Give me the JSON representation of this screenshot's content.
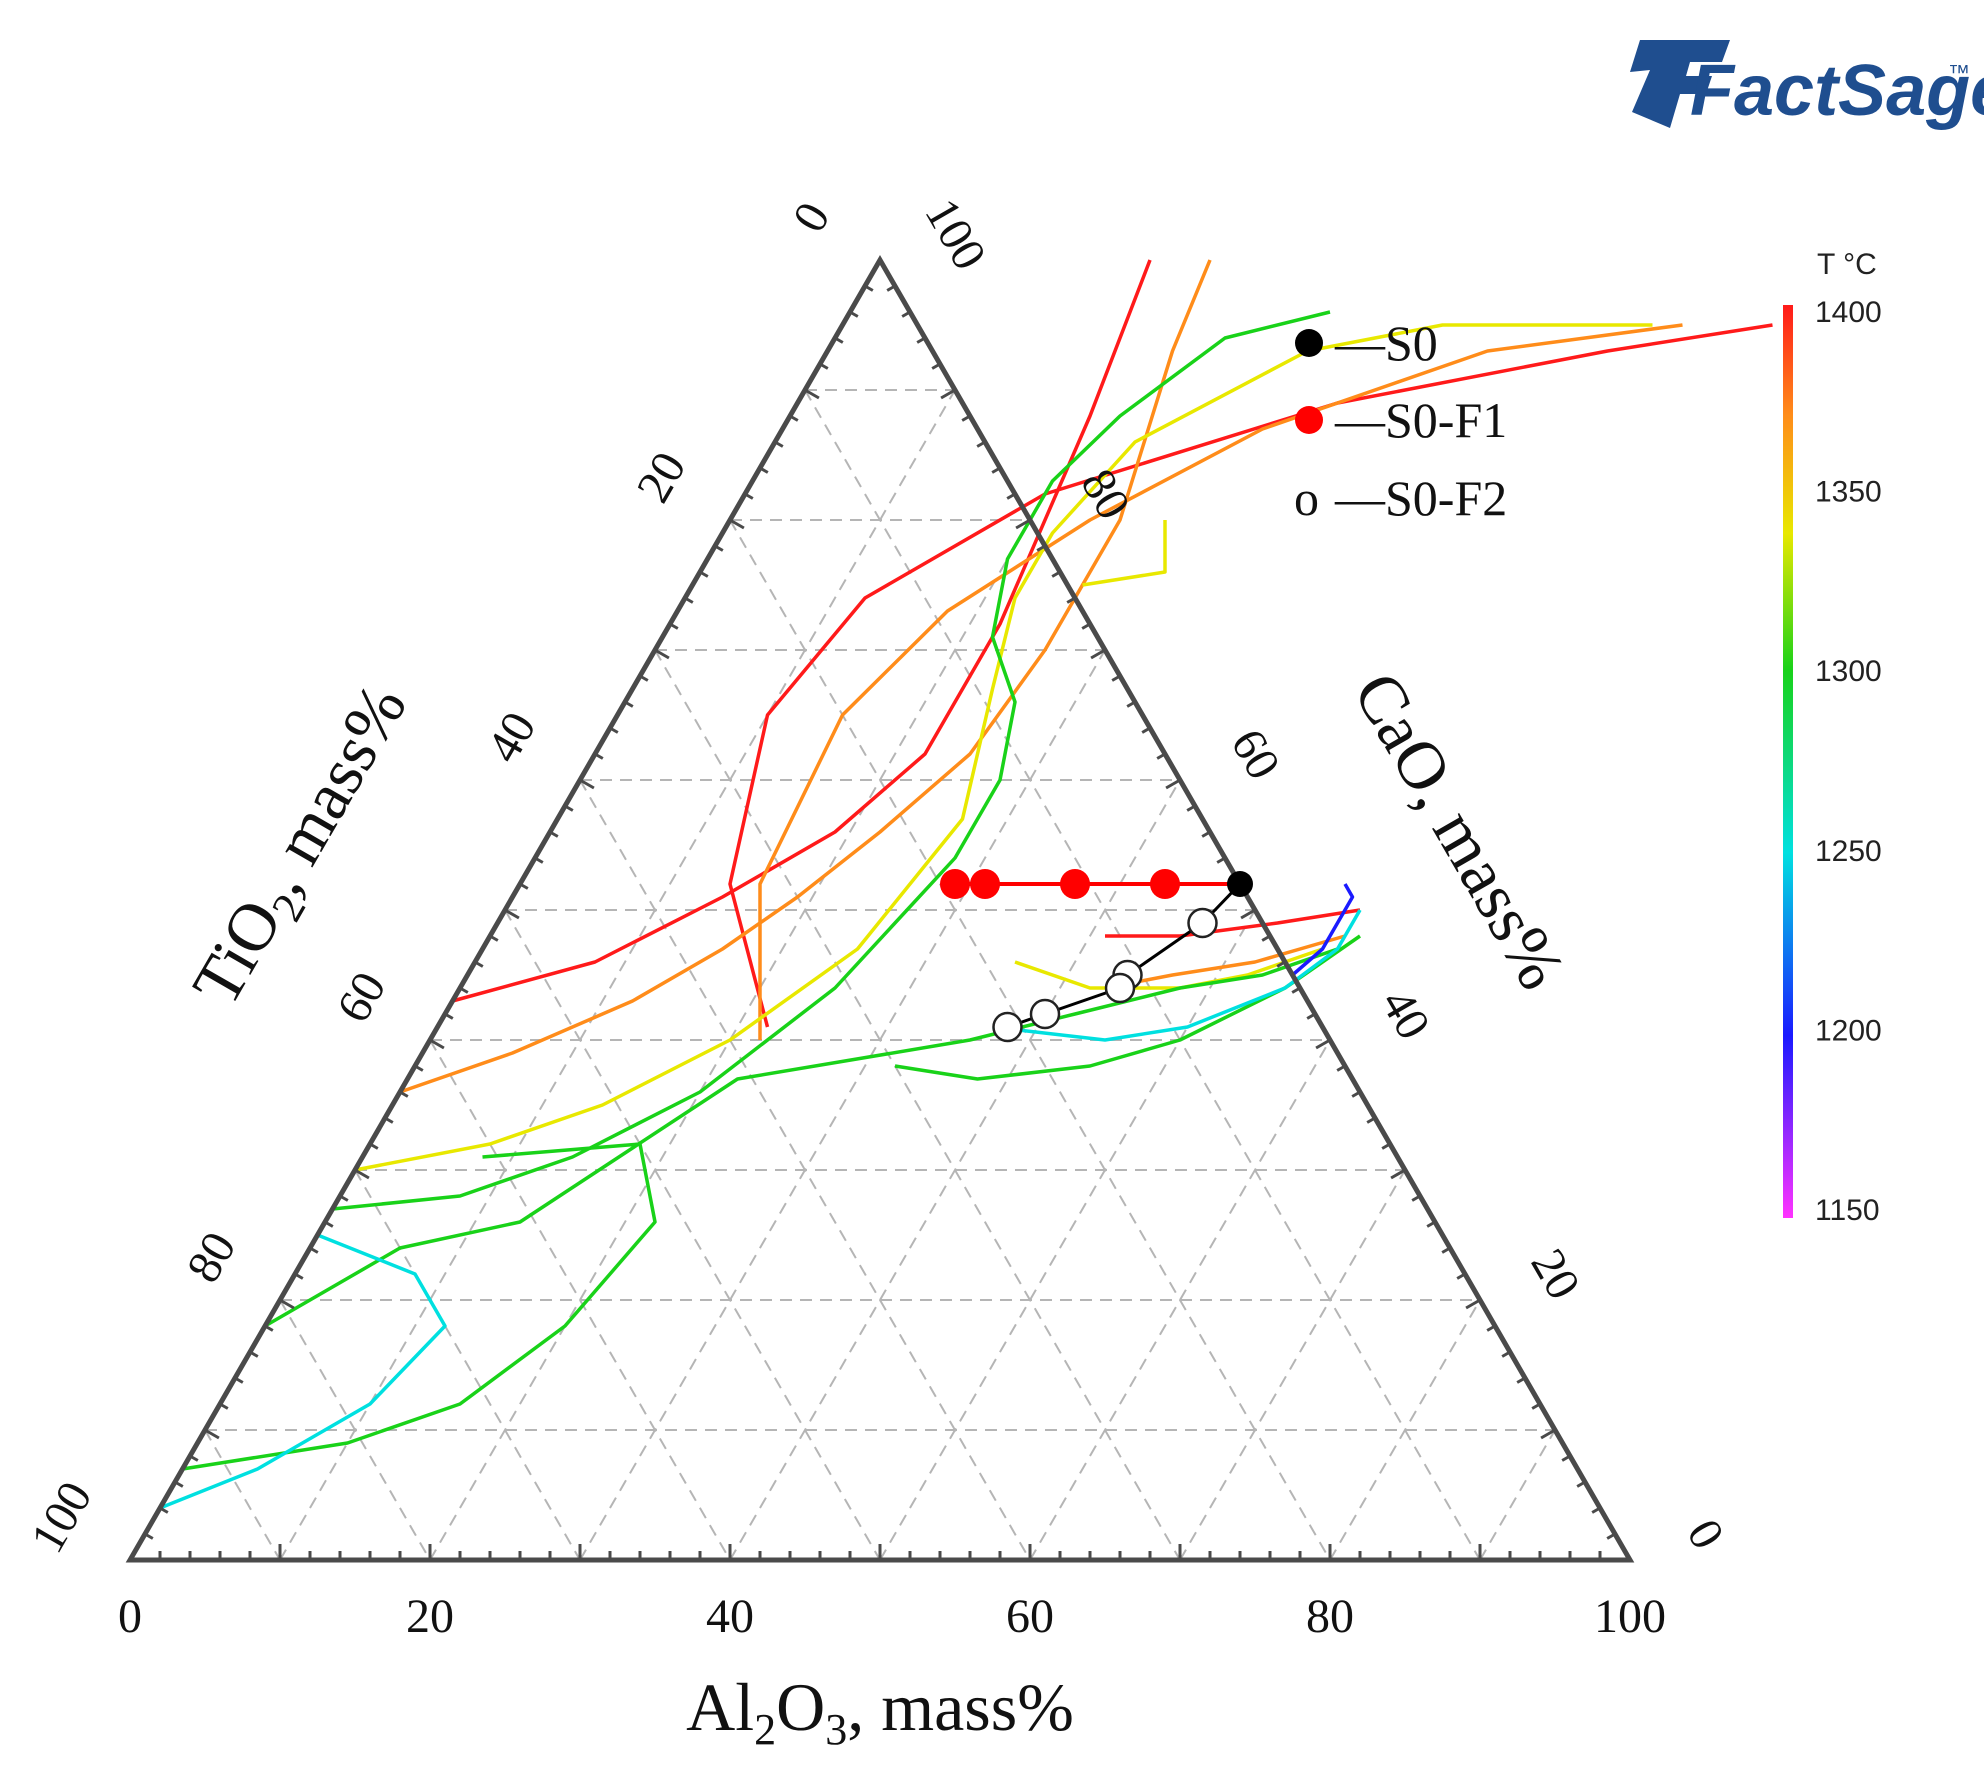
{
  "logo": {
    "text": "FactSage",
    "mark": "™",
    "color": "#1f4e8f"
  },
  "chart_data": {
    "type": "ternary-contour",
    "axes": {
      "al2o3": {
        "label_main": "Al",
        "sub1": "2",
        "mid": "O",
        "sub2": "3",
        "suffix": ", mass%",
        "ticks": [
          "0",
          "20",
          "40",
          "60",
          "80",
          "100"
        ]
      },
      "tio2": {
        "label_main": "TiO",
        "sub1": "2",
        "suffix": ", mass%",
        "ticks": [
          "0",
          "20",
          "40",
          "60",
          "80",
          "100"
        ]
      },
      "cao": {
        "label": "CaO, mass%",
        "ticks": [
          "0",
          "20",
          "40",
          "60",
          "80",
          "100"
        ]
      },
      "range": [
        0,
        100
      ],
      "grid_step": 10,
      "grid": "dashed"
    },
    "colorbar": {
      "title": "T °C",
      "min": 1150,
      "max": 1400,
      "ticks": [
        "1400",
        "1350",
        "1300",
        "1250",
        "1200",
        "1150"
      ],
      "colors": [
        "#ff1a1a",
        "#ff8c1a",
        "#e8e800",
        "#19d219",
        "#00e0e0",
        "#1a1aff",
        "#ff33ff"
      ]
    },
    "legend": [
      {
        "marker": "●",
        "label": "—S0",
        "color": "#000000"
      },
      {
        "marker": "●",
        "label": "—S0-F1",
        "color": "#ff0000"
      },
      {
        "marker": "o",
        "label": "—S0-F2",
        "color": "#000000"
      }
    ],
    "series": [
      {
        "name": "S0",
        "color": "#000000",
        "points": [
          {
            "cao": 52,
            "al2o3": 48
          }
        ]
      },
      {
        "name": "S0-F1",
        "color": "#ff0000",
        "points": [
          {
            "cao": 52,
            "al2o3": 29
          },
          {
            "cao": 52,
            "al2o3": 31
          },
          {
            "cao": 52,
            "al2o3": 37
          },
          {
            "cao": 52,
            "al2o3": 43
          },
          {
            "cao": 52,
            "al2o3": 48
          }
        ]
      },
      {
        "name": "S0-F2",
        "color": "#ffffff",
        "points": [
          {
            "cao": 52,
            "al2o3": 48
          },
          {
            "cao": 49,
            "al2o3": 47
          },
          {
            "cao": 45,
            "al2o3": 44
          },
          {
            "cao": 44,
            "al2o3": 44
          },
          {
            "cao": 42,
            "al2o3": 40
          },
          {
            "cao": 41,
            "al2o3": 38
          }
        ]
      }
    ],
    "isotherms": [
      {
        "t": 1400,
        "color": "#ff1a1a",
        "points": [
          [
            41,
            22
          ],
          [
            52,
            14
          ],
          [
            65,
            10
          ],
          [
            74,
            12
          ],
          [
            82,
            20
          ],
          [
            89,
            36
          ],
          [
            93,
            52
          ],
          [
            95,
            62
          ]
        ]
      },
      {
        "t": 1400,
        "color": "#ff1a1a",
        "points": [
          [
            43,
            0
          ],
          [
            46,
            8
          ],
          [
            51,
            14
          ],
          [
            56,
            19
          ],
          [
            62,
            22
          ],
          [
            72,
            22
          ],
          [
            88,
            20
          ],
          [
            100,
            18
          ]
        ]
      },
      {
        "t": 1400,
        "color": "#ff1a1a",
        "points": [
          [
            48,
            41
          ],
          [
            48,
            46
          ],
          [
            49,
            52
          ],
          [
            50,
            57
          ]
        ]
      },
      {
        "t": 1375,
        "color": "#ff8c1a",
        "points": [
          [
            36,
            0
          ],
          [
            39,
            6
          ],
          [
            43,
            12
          ],
          [
            47,
            16
          ],
          [
            51,
            19
          ],
          [
            56,
            22
          ],
          [
            62,
            25
          ],
          [
            70,
            26
          ],
          [
            80,
            26
          ],
          [
            93,
            23
          ],
          [
            100,
            22
          ]
        ]
      },
      {
        "t": 1375,
        "color": "#ff8c1a",
        "points": [
          [
            40,
            22
          ],
          [
            52,
            16
          ],
          [
            65,
            15
          ],
          [
            73,
            18
          ],
          [
            80,
            24
          ],
          [
            87,
            32
          ],
          [
            93,
            44
          ],
          [
            95,
            56
          ]
        ]
      },
      {
        "t": 1375,
        "color": "#ff8c1a",
        "points": [
          [
            44,
            43
          ],
          [
            45,
            47
          ],
          [
            46,
            52
          ],
          [
            48,
            57
          ]
        ]
      },
      {
        "t": 1350,
        "color": "#e8e800",
        "points": [
          [
            30,
            0
          ],
          [
            32,
            8
          ],
          [
            35,
            14
          ],
          [
            40,
            20
          ],
          [
            47,
            25
          ],
          [
            57,
            27
          ],
          [
            67,
            24
          ],
          [
            74,
            22
          ],
          [
            79,
            22
          ],
          [
            86,
            24
          ],
          [
            93,
            32
          ],
          [
            95,
            40
          ],
          [
            95,
            54
          ]
        ]
      },
      {
        "t": 1350,
        "color": "#e8e800",
        "points": [
          [
            75,
            26
          ],
          [
            76,
            31
          ],
          [
            80,
            29
          ]
        ]
      },
      {
        "t": 1350,
        "color": "#e8e800",
        "points": [
          [
            46,
            36
          ],
          [
            44,
            42
          ],
          [
            44,
            48
          ],
          [
            45,
            52
          ],
          [
            47,
            56
          ]
        ]
      },
      {
        "t": 1325,
        "color": "#19d219",
        "points": [
          [
            27,
            0
          ],
          [
            28,
            8
          ],
          [
            31,
            14
          ],
          [
            36,
            20
          ],
          [
            44,
            25
          ],
          [
            54,
            28
          ],
          [
            60,
            28
          ],
          [
            66,
            26
          ],
          [
            71,
            22
          ],
          [
            77,
            20
          ],
          [
            83,
            20
          ],
          [
            88,
            22
          ],
          [
            94,
            26
          ],
          [
            96,
            32
          ]
        ]
      },
      {
        "t": 1325,
        "color": "#19d219",
        "points": [
          [
            18,
            0
          ],
          [
            24,
            6
          ],
          [
            26,
            13
          ],
          [
            37,
            22
          ],
          [
            40,
            36
          ],
          [
            42,
            42
          ],
          [
            44,
            48
          ],
          [
            45,
            53
          ],
          [
            47,
            57
          ]
        ]
      },
      {
        "t": 1300,
        "color": "#19d219",
        "points": [
          [
            7,
            0
          ],
          [
            9,
            10
          ],
          [
            12,
            16
          ],
          [
            18,
            20
          ],
          [
            26,
            22
          ],
          [
            32,
            18
          ],
          [
            31,
            8
          ]
        ]
      },
      {
        "t": 1300,
        "color": "#19d219",
        "points": [
          [
            38,
            32
          ],
          [
            37,
            38
          ],
          [
            38,
            45
          ],
          [
            40,
            50
          ],
          [
            44,
            55
          ],
          [
            48,
            58
          ]
        ]
      },
      {
        "t": 1275,
        "color": "#00e0e0",
        "points": [
          [
            4,
            0
          ],
          [
            7,
            5
          ],
          [
            12,
            10
          ],
          [
            18,
            12
          ],
          [
            22,
            8
          ],
          [
            25,
            0
          ]
        ]
      },
      {
        "t": 1250,
        "color": "#00e0e0",
        "points": [
          [
            41,
            37
          ],
          [
            40,
            45
          ],
          [
            41,
            50
          ],
          [
            44,
            55
          ],
          [
            47,
            57
          ],
          [
            50,
            57
          ]
        ]
      },
      {
        "t": 1225,
        "color": "#1a1aff",
        "points": [
          [
            45,
            55
          ],
          [
            47,
            56
          ],
          [
            51,
            56
          ],
          [
            52,
            55
          ]
        ]
      }
    ]
  }
}
